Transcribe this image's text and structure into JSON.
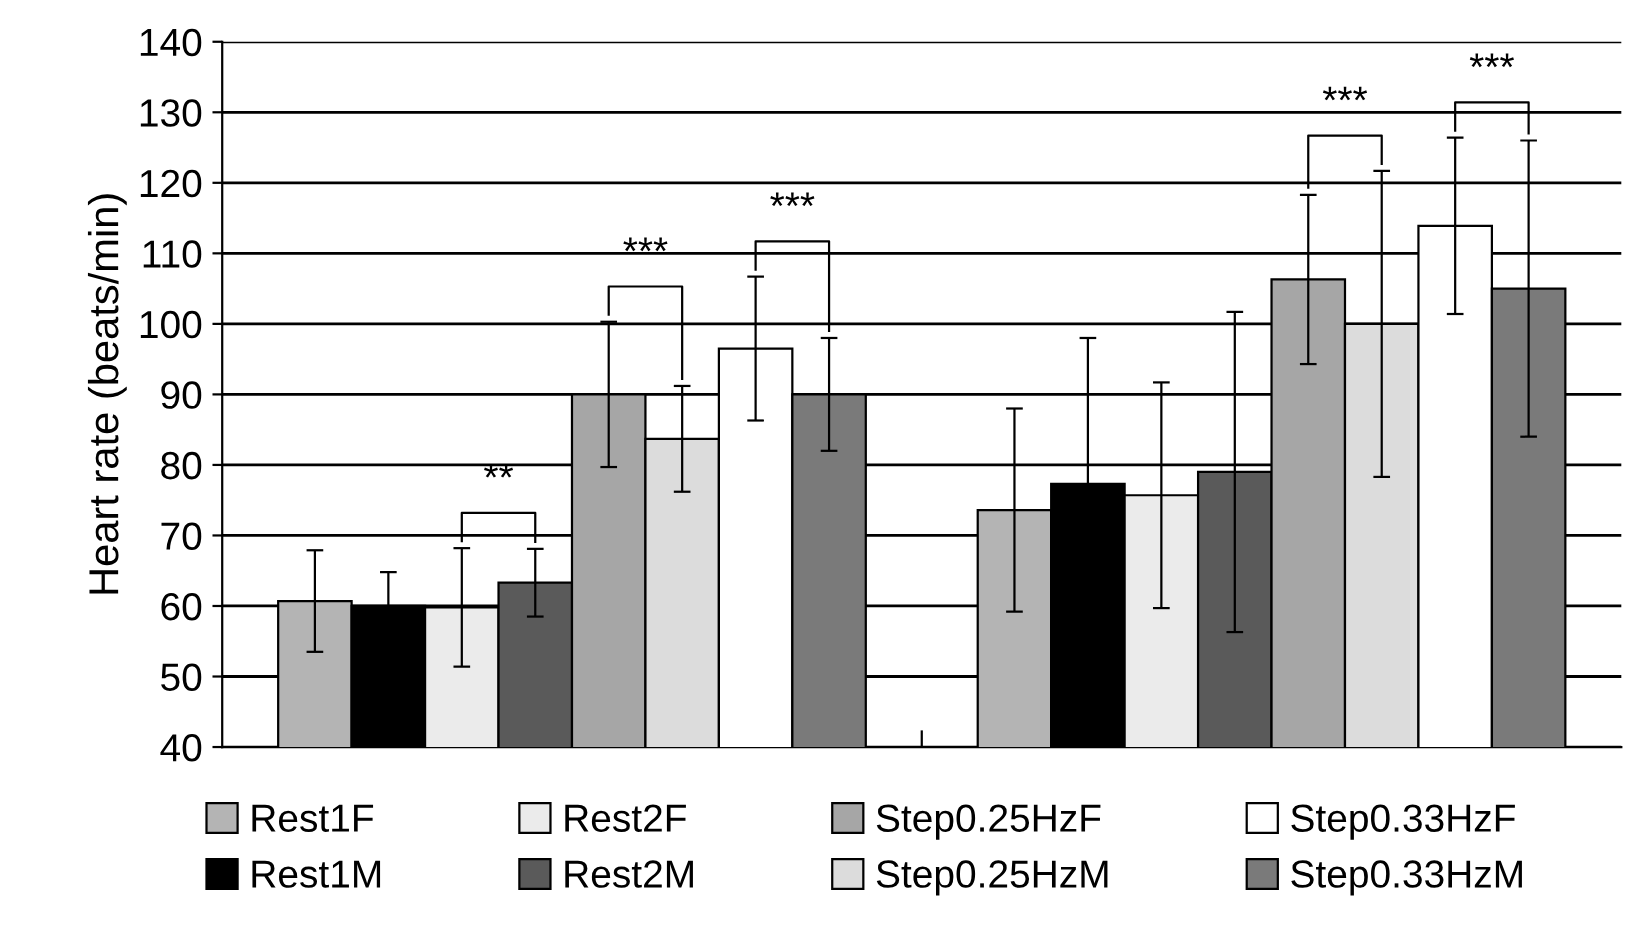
{
  "chart_data": {
    "type": "bar",
    "ylabel": "Heart rate (beats/min)",
    "categories": [
      null,
      null
    ],
    "series": [
      {
        "name": "Rest1F",
        "color": "#b4b4b4",
        "values": [
          60.7,
          73.6
        ],
        "errors": [
          7.2,
          14.4
        ]
      },
      {
        "name": "Rest1M",
        "color": "#000000",
        "values": [
          60.0,
          77.3
        ],
        "errors": [
          4.8,
          20.7
        ]
      },
      {
        "name": "Rest2F",
        "color": "#ebebeb",
        "values": [
          59.8,
          75.7
        ],
        "errors": [
          8.4,
          16.0
        ]
      },
      {
        "name": "Rest2M",
        "color": "#5a5a5a",
        "values": [
          63.3,
          79.0
        ],
        "errors": [
          4.8,
          22.7
        ]
      },
      {
        "name": "Step0.25HzF",
        "color": "#a6a6a6",
        "values": [
          90.0,
          106.3
        ],
        "errors": [
          10.3,
          12.0
        ]
      },
      {
        "name": "Step0.25HzM",
        "color": "#dcdcdc",
        "values": [
          83.7,
          100.0
        ],
        "errors": [
          7.5,
          21.7
        ]
      },
      {
        "name": "Step0.33HzF",
        "color": "#ffffff",
        "values": [
          96.5,
          113.9
        ],
        "errors": [
          10.2,
          12.5
        ]
      },
      {
        "name": "Step0.33HzM",
        "color": "#7a7a7a",
        "values": [
          90.0,
          105.0
        ],
        "errors": [
          8.0,
          21.0
        ]
      }
    ],
    "annotations": [
      "**",
      "***",
      "***",
      "***",
      "***"
    ],
    "ylim": [
      40,
      140
    ],
    "yticks": [
      40,
      50,
      60,
      70,
      80,
      90,
      100,
      110,
      120,
      130,
      140
    ],
    "grid": "y",
    "legend": "bottom"
  }
}
